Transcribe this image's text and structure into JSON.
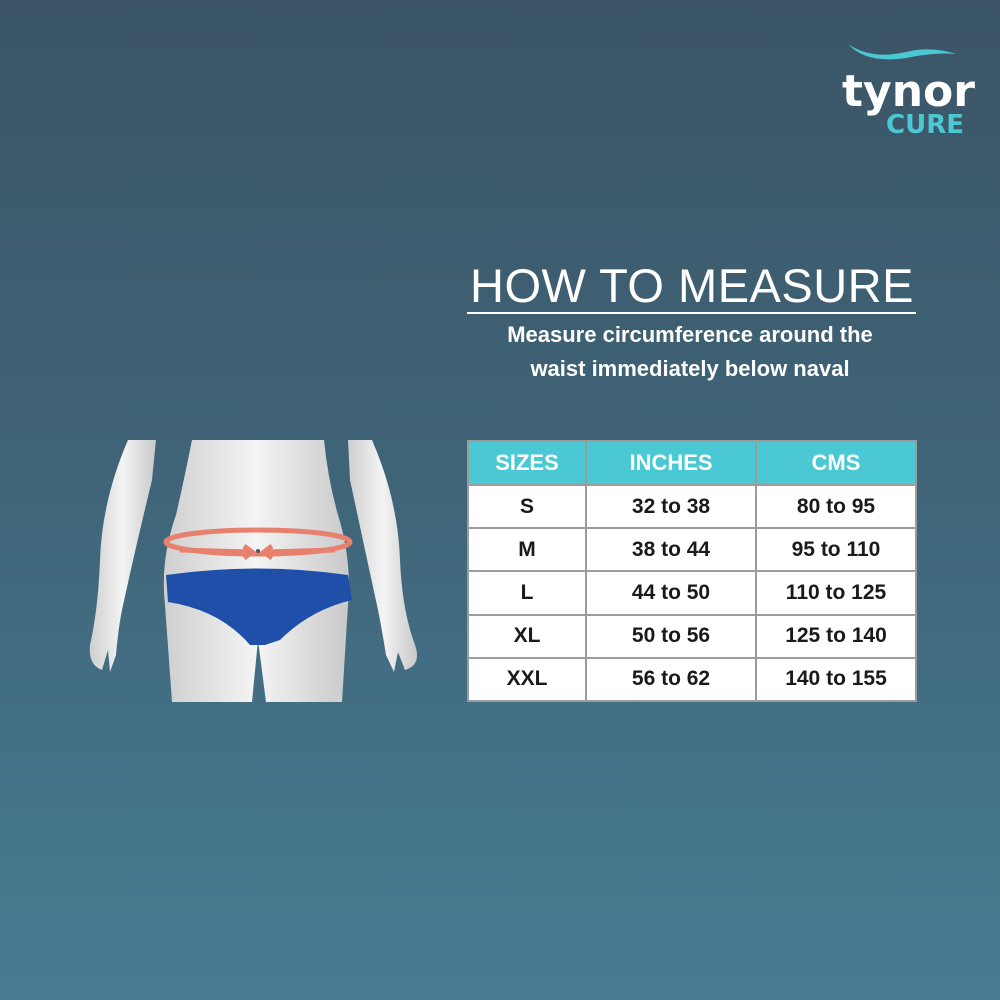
{
  "brand": {
    "name": "tynor",
    "sub": "CURE",
    "accent": "#4cc8d3"
  },
  "heading": {
    "title": "HOW TO MEASURE",
    "line1": "Measure circumference around the",
    "line2": "waist immediately below naval"
  },
  "table": {
    "headers": [
      "SIZES",
      "INCHES",
      "CMS"
    ],
    "header_color": "#4ac8d4",
    "rows": [
      [
        "S",
        "32 to 38",
        "80 to 95"
      ],
      [
        "M",
        "38 to 44",
        "95 to 110"
      ],
      [
        "L",
        "44 to 50",
        "110 to 125"
      ],
      [
        "XL",
        "50 to 56",
        "125 to 140"
      ],
      [
        "XXL",
        "56 to 62",
        "140 to 155"
      ]
    ]
  }
}
